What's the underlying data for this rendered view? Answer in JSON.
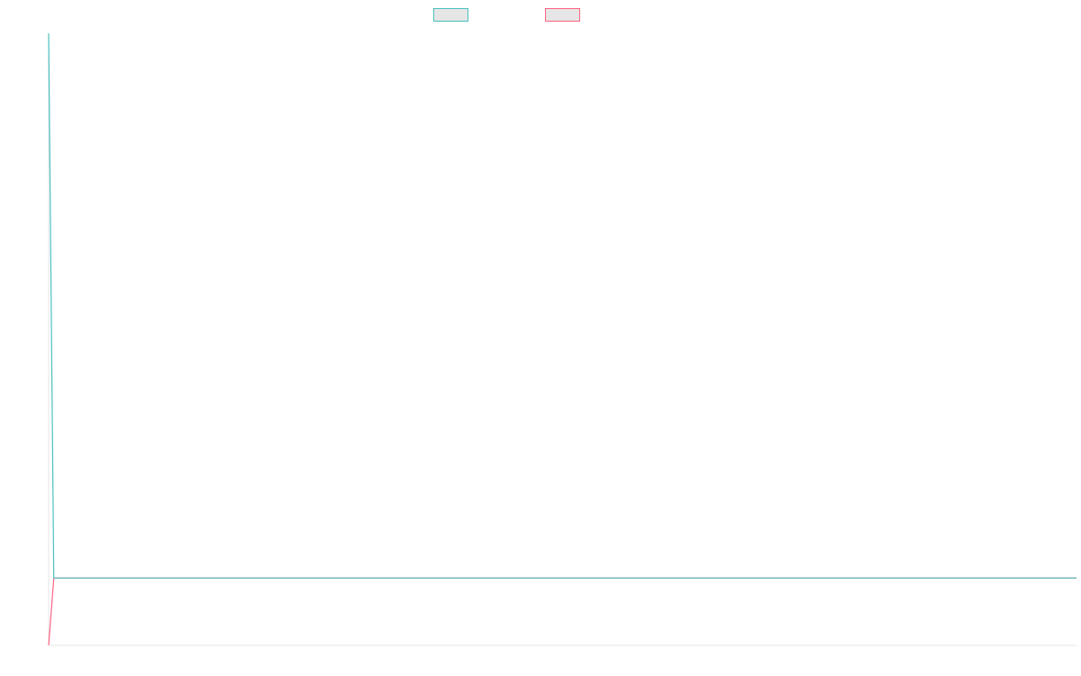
{
  "chart_data": {
    "type": "line",
    "title": "",
    "xlabel": "",
    "ylabel": "",
    "grid": false,
    "legend": "top-center",
    "x_count": 200,
    "series": [
      {
        "name": "",
        "color": "#4bc0c0",
        "fill": "#e6e6e6",
        "first_value": 100,
        "rest_value": 11
      },
      {
        "name": "",
        "color": "#ff6384",
        "fill": "#e6e6e6",
        "first_value": 0,
        "rest_value": 11
      }
    ],
    "ylim": [
      0,
      100
    ]
  }
}
